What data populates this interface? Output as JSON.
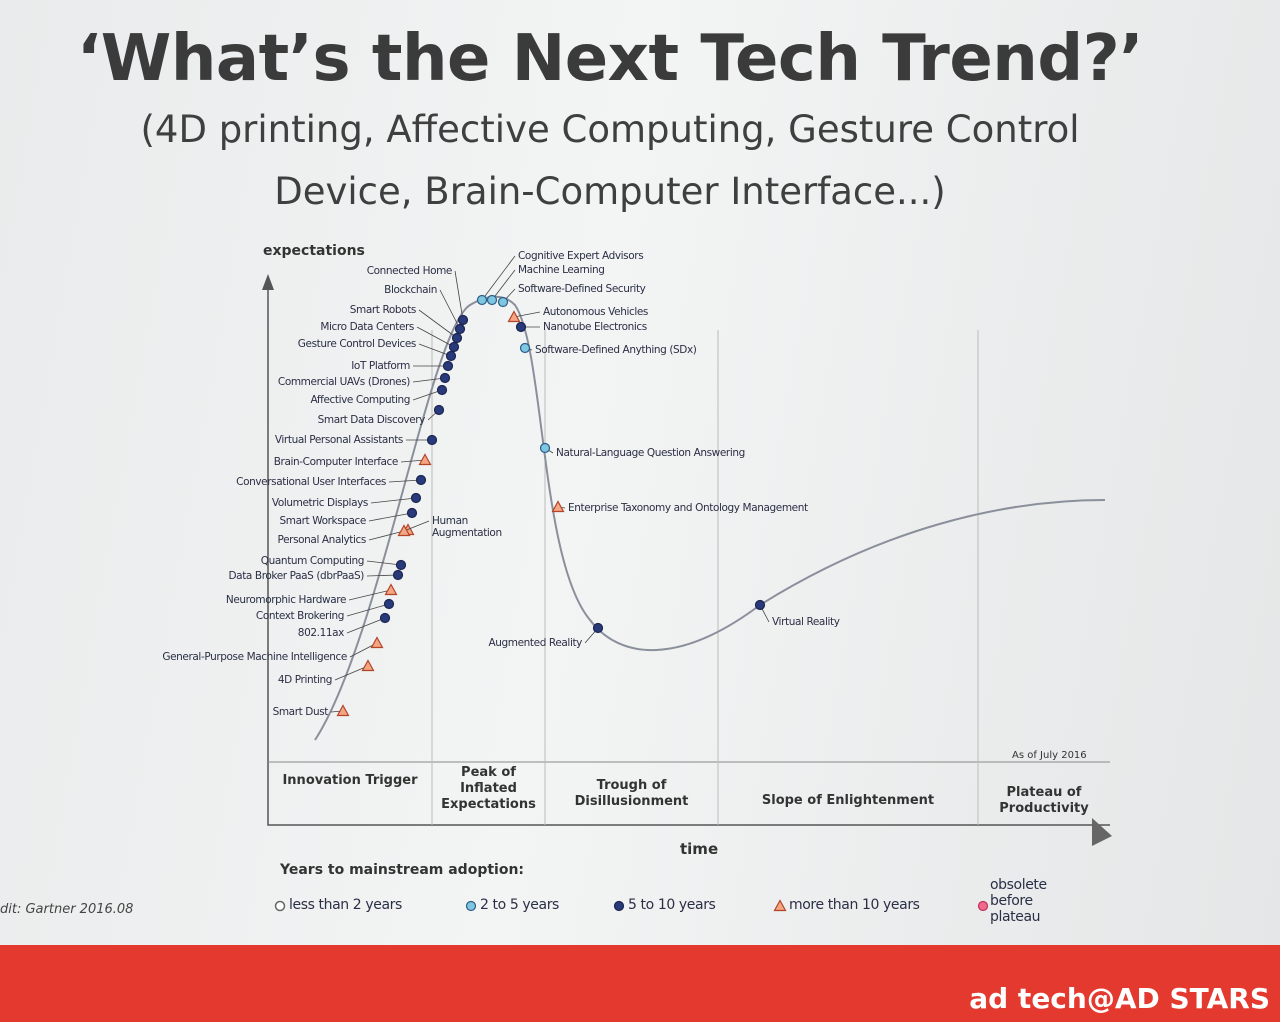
{
  "header": {
    "title": "‘What’s the Next Tech Trend?’",
    "subtitle_lines": [
      "(4D printing, Affective Computing, Gesture Control",
      "Device, Brain-Computer Interface...)"
    ]
  },
  "diagram": {
    "y_axis_label": "expectations",
    "x_axis_label": "time",
    "as_of": "As of July 2016",
    "technologies": [
      "Connected Home",
      "Blockchain",
      "Smart Robots",
      "Micro Data Centers",
      "Gesture Control Devices",
      "IoT Platform",
      "Commercial UAVs (Drones)",
      "Affective Computing",
      "Smart Data Discovery",
      "Virtual Personal Assistants",
      "Brain-Computer Interface",
      "Conversational User Interfaces",
      "Volumetric Displays",
      "Smart Workspace",
      "Personal Analytics",
      "Quantum Computing",
      "Data Broker PaaS (dbrPaaS)",
      "Neuromorphic Hardware",
      "Context Brokering",
      "802.11ax",
      "General-Purpose Machine Intelligence",
      "4D Printing",
      "Smart Dust",
      "Human Augmentation",
      "Cognitive Expert Advisors",
      "Machine Learning",
      "Software-Defined Security",
      "Autonomous Vehicles",
      "Nanotube Electronics",
      "Software-Defined Anything (SDx)",
      "Natural-Language Question Answering",
      "Enterprise Taxonomy and Ontology Management",
      "Augmented Reality",
      "Virtual Reality"
    ],
    "phases": [
      "Innovation Trigger",
      "Peak of Inflated Expectations",
      "Trough of Disillusionment",
      "Slope of Enlightenment",
      "Plateau of Productivity"
    ],
    "legend": {
      "title": "Years to mainstream adoption:",
      "items": [
        "less than 2 years",
        "2 to 5 years",
        "5 to 10 years",
        "more than 10 years",
        "obsolete before plateau"
      ]
    }
  },
  "credit": "dit: Gartner 2016.08",
  "footer": {
    "brand": "ad tech@AD STARS"
  }
}
